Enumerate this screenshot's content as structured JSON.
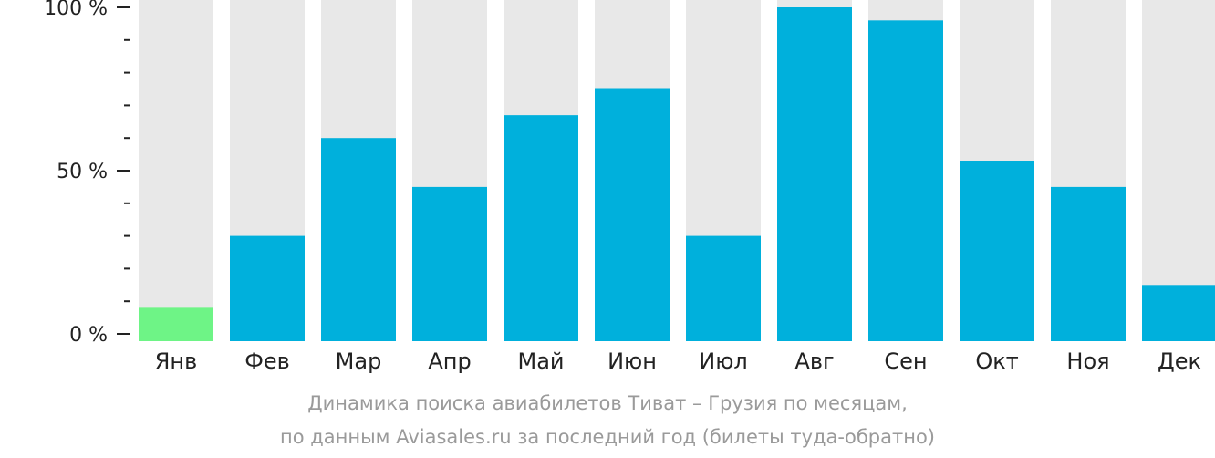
{
  "chart_data": {
    "type": "bar",
    "categories": [
      "Янв",
      "Фев",
      "Мар",
      "Апр",
      "Май",
      "Июн",
      "Июл",
      "Авг",
      "Сен",
      "Окт",
      "Ноя",
      "Дек"
    ],
    "values": [
      8,
      30,
      60,
      45,
      67,
      75,
      30,
      100,
      96,
      53,
      45,
      15
    ],
    "ylim": [
      0,
      100
    ],
    "yticks": [
      {
        "value": 0,
        "label": "0 %"
      },
      {
        "value": 50,
        "label": "50 %"
      },
      {
        "value": 100,
        "label": "100 %"
      }
    ],
    "minor_tick_step": 10,
    "grid": false,
    "legend": "none",
    "highlight_index": 0,
    "colors": {
      "bar": "#00b0dc",
      "highlight": "#6ef486",
      "track": "#e8e8e8",
      "axis": "#222222"
    }
  },
  "caption": {
    "line1": "Динамика поиска авиабилетов Тиват – Грузия по месяцам,",
    "line2": "по данным Aviasales.ru за последний год (билеты туда-обратно)"
  }
}
